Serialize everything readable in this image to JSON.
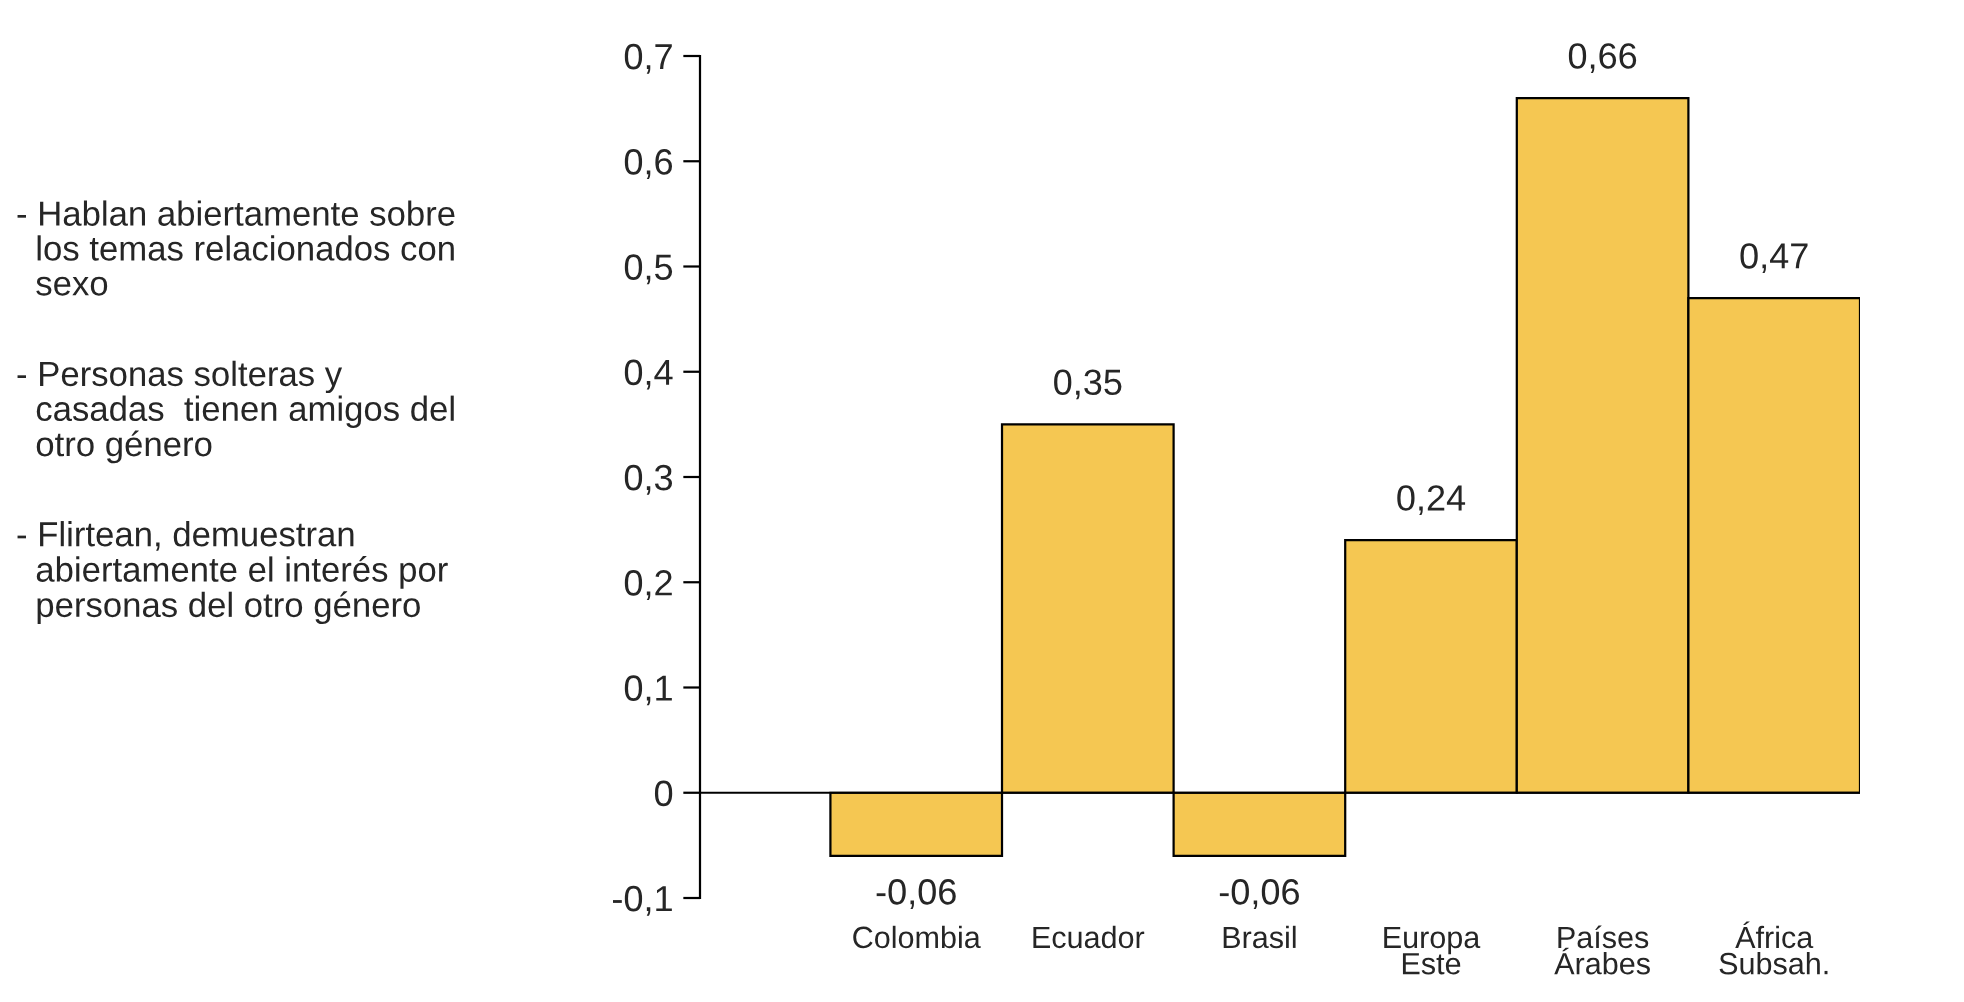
{
  "chart_data": {
    "type": "bar",
    "categories": [
      "Colombia",
      "Ecuador",
      "Brasil",
      "Europa\nEste",
      "Países\nÁrabes",
      "África\nSubsah."
    ],
    "values": [
      -0.06,
      0.35,
      -0.06,
      0.24,
      0.66,
      0.47
    ],
    "color": "#f5c752",
    "ylim": [
      -0.1,
      0.7
    ],
    "yticks": [
      {
        "value": -0.1,
        "label": "-0,1"
      },
      0,
      {
        "value": 0.1,
        "label": "0,1"
      },
      {
        "value": 0.2,
        "label": "0,2"
      },
      {
        "value": 0.3,
        "label": "0,3"
      },
      {
        "value": 0.4,
        "label": "0,4"
      },
      {
        "value": 0.5,
        "label": "0,5"
      },
      {
        "value": 0.6,
        "label": "0,6"
      },
      {
        "value": 0.7,
        "label": "0,7"
      }
    ],
    "value_labels": [
      "-0,06",
      "0,35",
      "-0,06",
      "0,24",
      "0,66",
      "0,47"
    ],
    "annotations": [
      "- Hablan abiertamente sobre\n  los temas relacionados con\n  sexo",
      "- Personas solteras y\n  casadas  tienen amigos del\n  otro género",
      "- Flirtean, demuestran\n  abiertamente el interés por\n  personas del otro género"
    ],
    "ref_lines": [
      {
        "axis": "y",
        "value": 0
      }
    ],
    "grid": false,
    "legend": false
  }
}
